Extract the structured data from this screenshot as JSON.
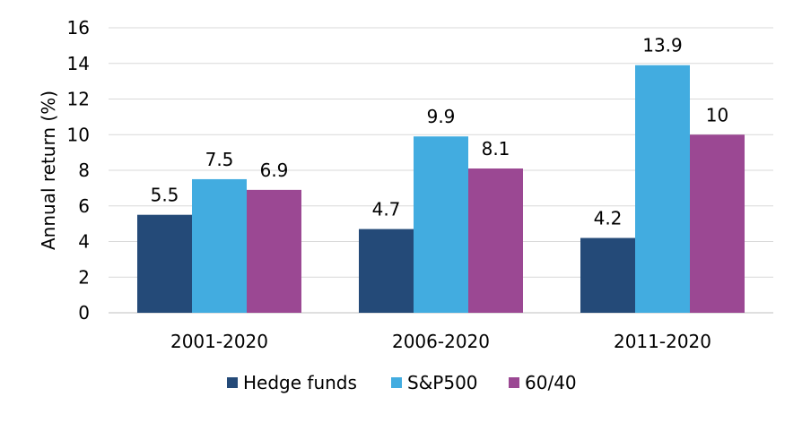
{
  "chart_data": {
    "type": "bar",
    "categories": [
      "2001-2020",
      "2006-2020",
      "2011-2020"
    ],
    "series": [
      {
        "name": "Hedge funds",
        "color": "#244a78",
        "values": [
          5.5,
          4.7,
          4.2
        ],
        "labels": [
          "5.5",
          "4.7",
          "4.2"
        ]
      },
      {
        "name": "S&P500",
        "color": "#42ace0",
        "values": [
          7.5,
          9.9,
          13.9
        ],
        "labels": [
          "7.5",
          "9.9",
          "13.9"
        ]
      },
      {
        "name": "60/40",
        "color": "#9b4893",
        "values": [
          6.9,
          8.1,
          10
        ],
        "labels": [
          "6.9",
          "8.1",
          "10"
        ]
      }
    ],
    "ylabel": "Annual return (%)",
    "ylim": [
      0,
      16
    ],
    "yticks": [
      "0",
      "2",
      "4",
      "6",
      "8",
      "10",
      "12",
      "14",
      "16"
    ],
    "grid": true,
    "legend_position": "bottom"
  }
}
